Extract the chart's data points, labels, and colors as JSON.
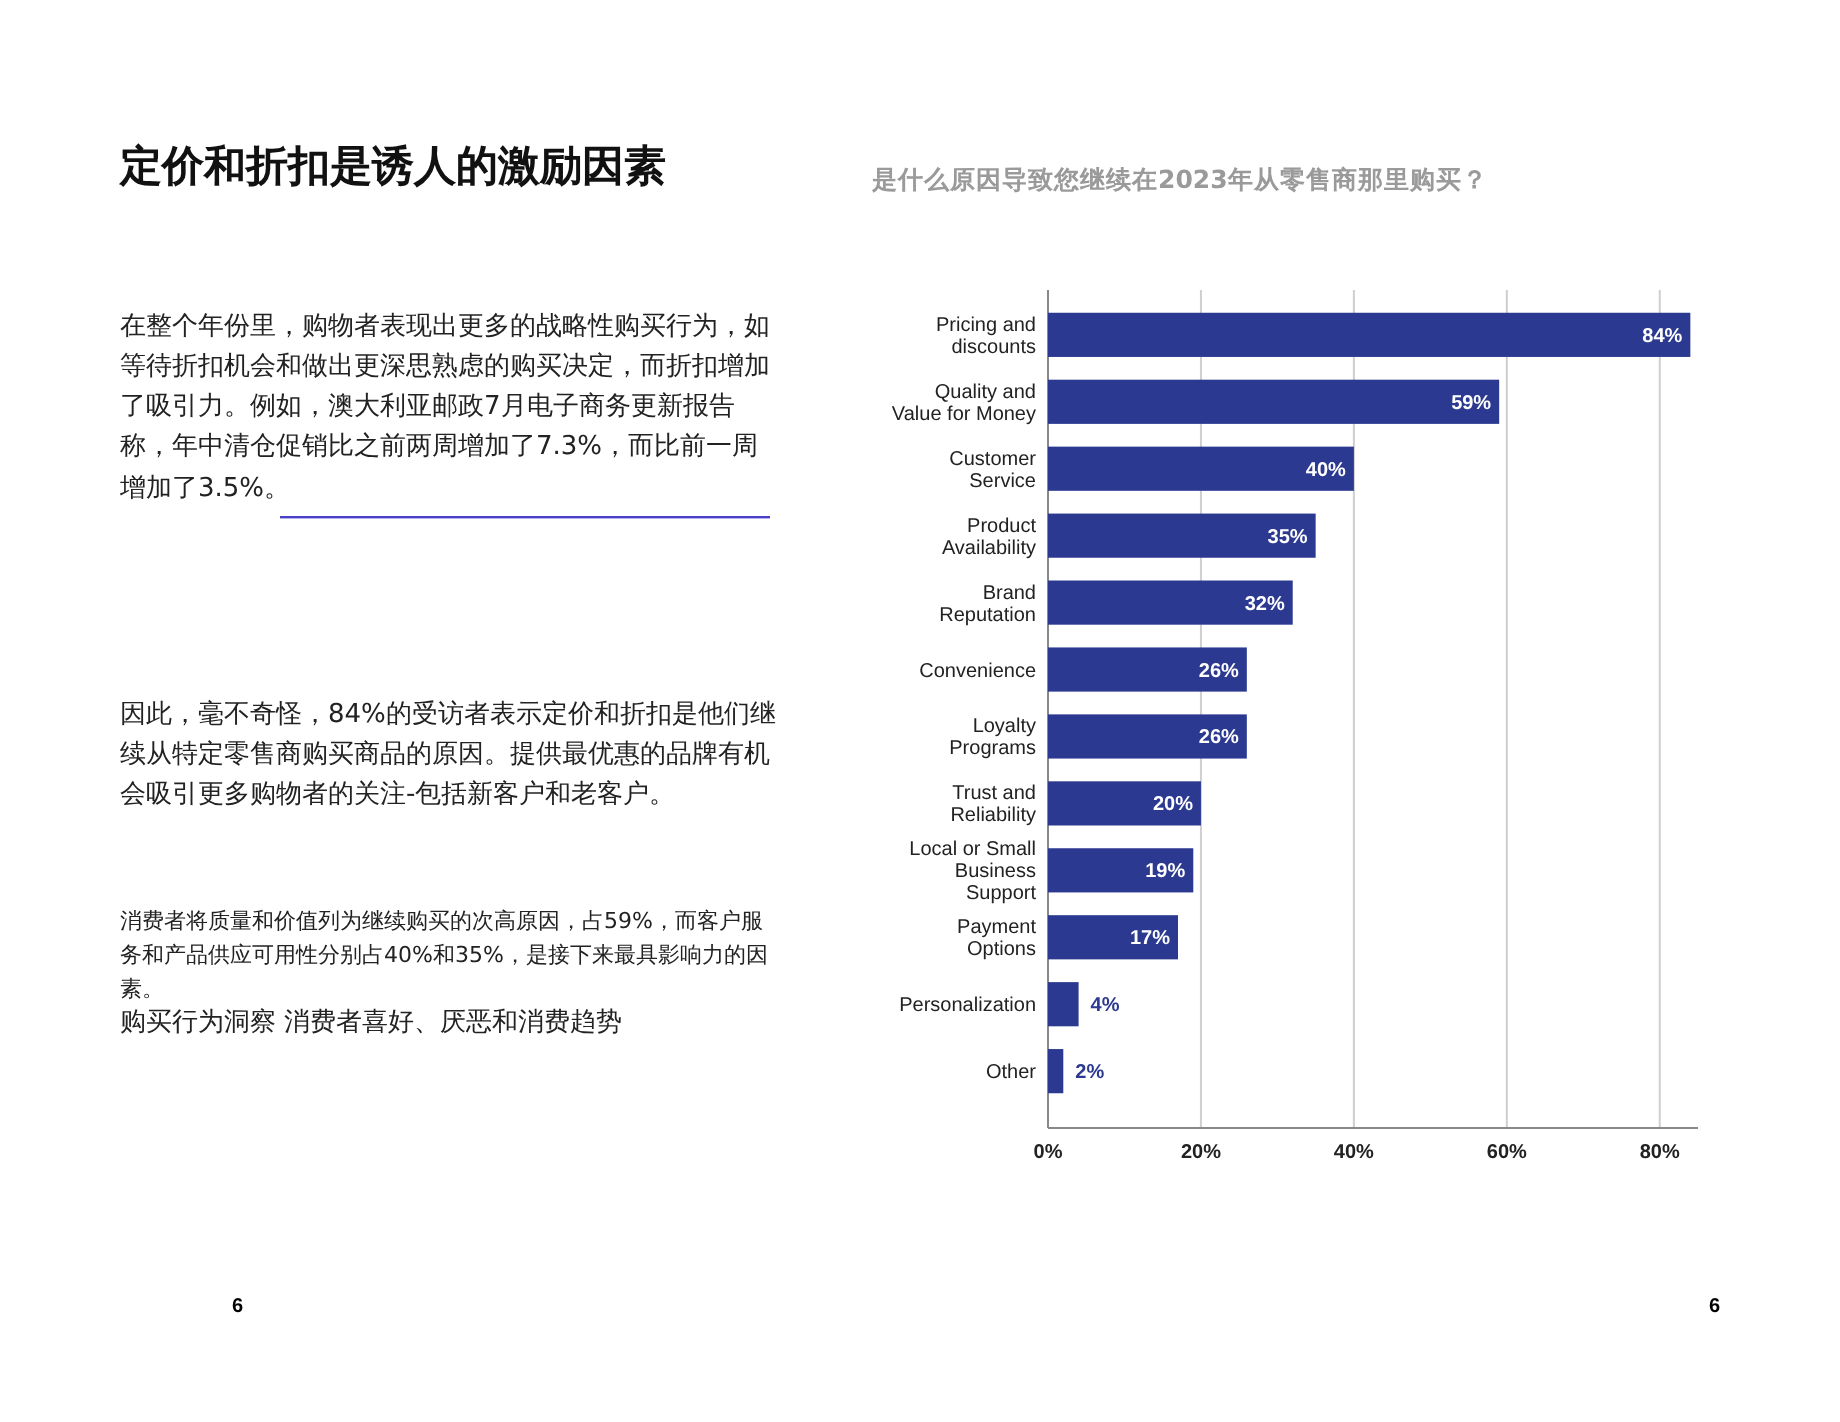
{
  "chart_data": {
    "type": "bar",
    "orientation": "horizontal",
    "title": "定价和折扣是诱人的激励因素",
    "subtitle": "是什么原因导致您继续在2023年从零售商那里购买？",
    "categories": [
      "Pricing and\ndiscounts",
      "Quality and\nValue for Money",
      "Customer\nService",
      "Product\nAvailability",
      "Brand\nReputation",
      "Convenience",
      "Loyalty\nPrograms",
      "Trust and\nReliability",
      "Local or Small\nBusiness\nSupport",
      "Payment\nOptions",
      "Personalization",
      "Other"
    ],
    "values": [
      84,
      59,
      40,
      35,
      32,
      26,
      26,
      20,
      19,
      17,
      4,
      2
    ],
    "value_labels": [
      "84%",
      "59%",
      "40%",
      "35%",
      "32%",
      "26%",
      "26%",
      "20%",
      "19%",
      "17%",
      "4%",
      "2%"
    ],
    "color": "#2b3990",
    "xlim": [
      0,
      85
    ],
    "xticks": [
      {
        "value": 0,
        "label": "0%"
      },
      {
        "value": 20,
        "label": "20%"
      },
      {
        "value": 40,
        "label": "40%"
      },
      {
        "value": 60,
        "label": "60%"
      },
      {
        "value": 80,
        "label": "80%"
      }
    ],
    "grid": "x",
    "annotations": [
      "在整个年份里，购物者表现出更多的战略性购买行为，如等待折扣机会和做出更深思熟虑的购买决定，而折扣增加了吸引力。例如，澳大利亚邮政7月电子商务更新报告称，年中清仓促销比之前两周增加了7.3%，而比前一周增加了3.5%。",
      "因此，毫不奇怪，84%的受访者表示定价和折扣是他们继续从特定零售商购买商品的原因。提供最优惠的品牌有机会吸引更多购物者的关注-包括新客户和老客户。",
      "消费者将质量和价值列为继续购买的次高原因，占59%，而客户服务和产品供应可用性分别占40%和35%，是接下来最具影响力的因素。",
      "购买行为洞察 消费者喜好、厌恶和消费趋势",
      "6",
      "6"
    ]
  }
}
